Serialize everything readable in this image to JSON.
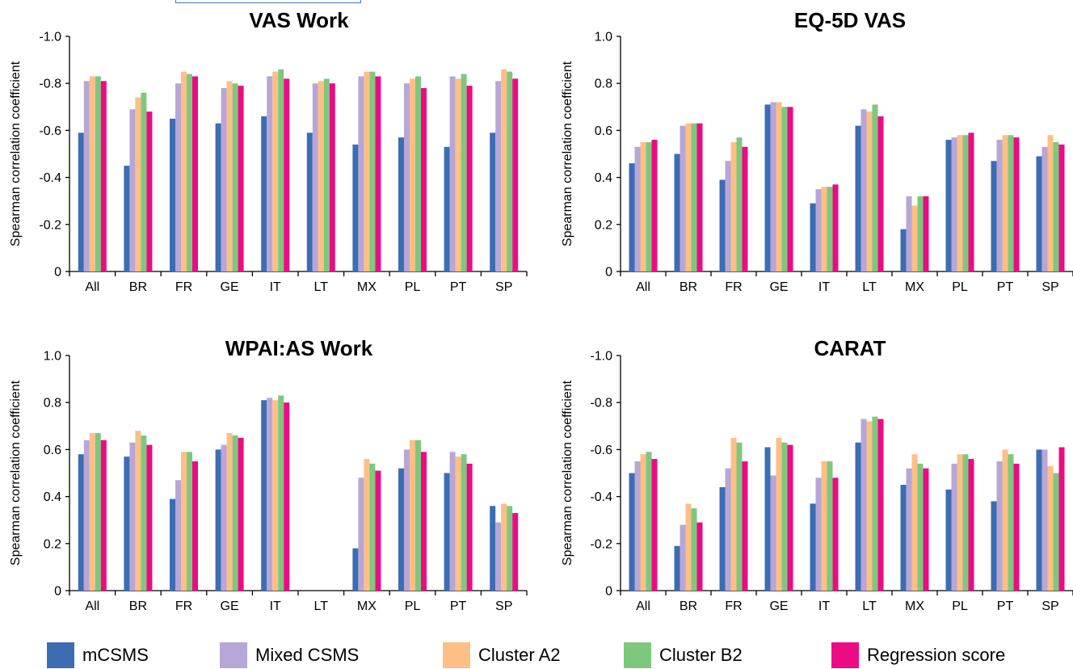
{
  "colors": {
    "mCSMS": "#3c6db3",
    "Mixed CSMS": "#b7a7d6",
    "Cluster A2": "#fdbf86",
    "Cluster B2": "#7ec87e",
    "Regression score": "#ec0b83"
  },
  "legend": {
    "items": [
      "mCSMS",
      "Mixed CSMS",
      "Cluster A2",
      "Cluster B2",
      "Regression score"
    ]
  },
  "chart_data": [
    {
      "type": "bar",
      "title": "VAS Work",
      "xlabel": "",
      "ylabel": "Spearman correlation coefficient",
      "ylim": [
        0,
        -1.0
      ],
      "yticks": [
        "0",
        "-0.2",
        "-0.4",
        "-0.6",
        "-0.8",
        "-1.0"
      ],
      "categories": [
        "All",
        "BR",
        "FR",
        "GE",
        "IT",
        "LT",
        "MX",
        "PL",
        "PT",
        "SP"
      ],
      "series": [
        {
          "name": "mCSMS",
          "values": [
            -0.59,
            -0.45,
            -0.65,
            -0.63,
            -0.66,
            -0.59,
            -0.54,
            -0.57,
            -0.53,
            -0.59
          ]
        },
        {
          "name": "Mixed CSMS",
          "values": [
            -0.81,
            -0.69,
            -0.8,
            -0.78,
            -0.83,
            -0.8,
            -0.83,
            -0.8,
            -0.83,
            -0.81
          ]
        },
        {
          "name": "Cluster A2",
          "values": [
            -0.83,
            -0.74,
            -0.85,
            -0.81,
            -0.85,
            -0.81,
            -0.85,
            -0.82,
            -0.82,
            -0.86
          ]
        },
        {
          "name": "Cluster B2",
          "values": [
            -0.83,
            -0.76,
            -0.84,
            -0.8,
            -0.86,
            -0.82,
            -0.85,
            -0.83,
            -0.84,
            -0.85
          ]
        },
        {
          "name": "Regression score",
          "values": [
            -0.81,
            -0.68,
            -0.83,
            -0.79,
            -0.82,
            -0.8,
            -0.83,
            -0.78,
            -0.79,
            -0.82
          ]
        }
      ]
    },
    {
      "type": "bar",
      "title": "EQ-5D VAS",
      "xlabel": "",
      "ylabel": "Spearman correlation coefficient",
      "ylim": [
        0,
        1.0
      ],
      "yticks": [
        "0",
        "0.2",
        "0.4",
        "0.6",
        "0.8",
        "1.0"
      ],
      "categories": [
        "All",
        "BR",
        "FR",
        "GE",
        "IT",
        "LT",
        "MX",
        "PL",
        "PT",
        "SP"
      ],
      "series": [
        {
          "name": "mCSMS",
          "values": [
            0.46,
            0.5,
            0.39,
            0.71,
            0.29,
            0.62,
            0.18,
            0.56,
            0.47,
            0.49
          ]
        },
        {
          "name": "Mixed CSMS",
          "values": [
            0.53,
            0.62,
            0.47,
            0.72,
            0.35,
            0.69,
            0.32,
            0.57,
            0.56,
            0.53
          ]
        },
        {
          "name": "Cluster A2",
          "values": [
            0.55,
            0.63,
            0.55,
            0.72,
            0.36,
            0.68,
            0.28,
            0.58,
            0.58,
            0.58
          ]
        },
        {
          "name": "Cluster B2",
          "values": [
            0.55,
            0.63,
            0.57,
            0.7,
            0.36,
            0.71,
            0.32,
            0.58,
            0.58,
            0.55
          ]
        },
        {
          "name": "Regression score",
          "values": [
            0.56,
            0.63,
            0.53,
            0.7,
            0.37,
            0.66,
            0.32,
            0.59,
            0.57,
            0.54
          ]
        }
      ]
    },
    {
      "type": "bar",
      "title": "WPAI:AS Work",
      "xlabel": "",
      "ylabel": "Spearman correlation coefficient",
      "ylim": [
        0,
        1.0
      ],
      "yticks": [
        "0",
        "0.2",
        "0.4",
        "0.6",
        "0.8",
        "1.0"
      ],
      "categories": [
        "All",
        "BR",
        "FR",
        "GE",
        "IT",
        "LT",
        "MX",
        "PL",
        "PT",
        "SP"
      ],
      "series": [
        {
          "name": "mCSMS",
          "values": [
            0.58,
            0.57,
            0.39,
            0.6,
            0.81,
            0,
            0.18,
            0.52,
            0.5,
            0.36
          ]
        },
        {
          "name": "Mixed CSMS",
          "values": [
            0.64,
            0.63,
            0.47,
            0.62,
            0.82,
            0,
            0.48,
            0.6,
            0.59,
            0.29
          ]
        },
        {
          "name": "Cluster A2",
          "values": [
            0.67,
            0.68,
            0.59,
            0.67,
            0.81,
            0,
            0.56,
            0.64,
            0.57,
            0.37
          ]
        },
        {
          "name": "Cluster B2",
          "values": [
            0.67,
            0.66,
            0.59,
            0.66,
            0.83,
            0,
            0.54,
            0.64,
            0.58,
            0.36
          ]
        },
        {
          "name": "Regression score",
          "values": [
            0.64,
            0.62,
            0.55,
            0.65,
            0.8,
            0,
            0.51,
            0.59,
            0.54,
            0.33
          ]
        }
      ]
    },
    {
      "type": "bar",
      "title": "CARAT",
      "xlabel": "",
      "ylabel": "Spearman correlation coefficient",
      "ylim": [
        0,
        -1.0
      ],
      "yticks": [
        "0",
        "-0.2",
        "-0.4",
        "-0.6",
        "-0.8",
        "-1.0"
      ],
      "categories": [
        "All",
        "BR",
        "FR",
        "GE",
        "IT",
        "LT",
        "MX",
        "PL",
        "PT",
        "SP"
      ],
      "series": [
        {
          "name": "mCSMS",
          "values": [
            -0.5,
            -0.19,
            -0.44,
            -0.61,
            -0.37,
            -0.63,
            -0.45,
            -0.43,
            -0.38,
            -0.6
          ]
        },
        {
          "name": "Mixed CSMS",
          "values": [
            -0.55,
            -0.28,
            -0.52,
            -0.49,
            -0.48,
            -0.73,
            -0.52,
            -0.54,
            -0.55,
            -0.6
          ]
        },
        {
          "name": "Cluster A2",
          "values": [
            -0.58,
            -0.37,
            -0.65,
            -0.65,
            -0.55,
            -0.72,
            -0.58,
            -0.58,
            -0.6,
            -0.53
          ]
        },
        {
          "name": "Cluster B2",
          "values": [
            -0.59,
            -0.35,
            -0.63,
            -0.63,
            -0.55,
            -0.74,
            -0.54,
            -0.58,
            -0.58,
            -0.5
          ]
        },
        {
          "name": "Regression score",
          "values": [
            -0.56,
            -0.29,
            -0.55,
            -0.62,
            -0.48,
            -0.73,
            -0.52,
            -0.56,
            -0.54,
            -0.61
          ]
        }
      ]
    }
  ]
}
